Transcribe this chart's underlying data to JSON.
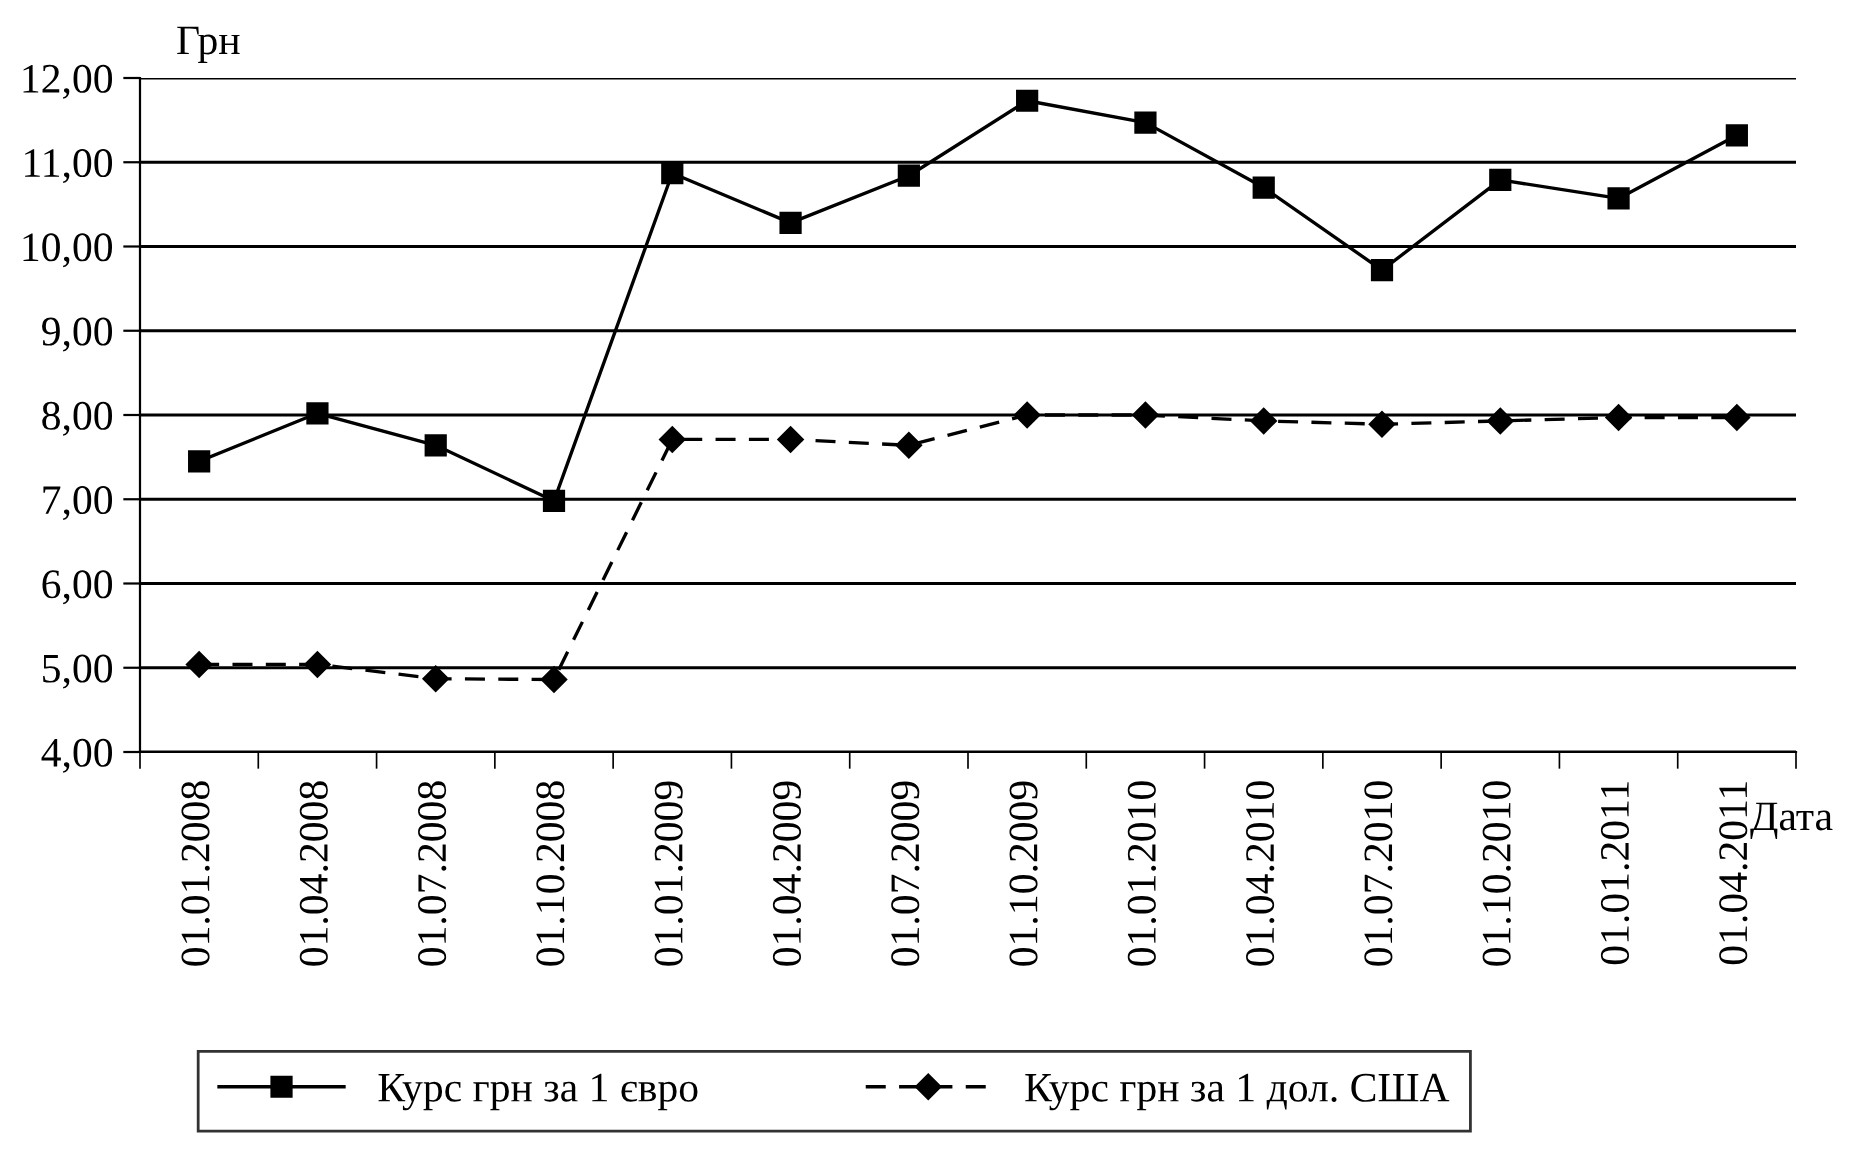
{
  "chart_data": {
    "type": "line",
    "ylabel": "Грн",
    "xlabel": "Дата",
    "categories": [
      "01.01.2008",
      "01.04.2008",
      "01.07.2008",
      "01.10.2008",
      "01.01.2009",
      "01.04.2009",
      "01.07.2009",
      "01.10.2009",
      "01.01.2010",
      "01.04.2010",
      "01.07.2010",
      "01.10.2010",
      "01.01.2011",
      "01.04.2011"
    ],
    "series": [
      {
        "name": "Курс грн за 1 євро",
        "color": "#000000",
        "marker": "square",
        "line_style": "solid",
        "values": [
          7.45,
          8.02,
          7.64,
          6.98,
          10.87,
          10.28,
          10.84,
          11.73,
          11.47,
          10.7,
          9.72,
          10.79,
          10.57,
          11.32
        ]
      },
      {
        "name": "Курс грн за 1 дол. США",
        "color": "#000000",
        "marker": "diamond",
        "line_style": "dashed",
        "values": [
          5.04,
          5.04,
          4.87,
          4.86,
          7.71,
          7.71,
          7.64,
          8.0,
          8.0,
          7.93,
          7.89,
          7.93,
          7.97,
          7.97
        ]
      }
    ],
    "ylim": [
      4,
      12
    ],
    "yticks": [
      {
        "value": 4,
        "label": "4,00"
      },
      {
        "value": 5,
        "label": "5,00"
      },
      {
        "value": 6,
        "label": "6,00"
      },
      {
        "value": 7,
        "label": "7,00"
      },
      {
        "value": 8,
        "label": "8,00"
      },
      {
        "value": 9,
        "label": "9,00"
      },
      {
        "value": 10,
        "label": "10,00"
      },
      {
        "value": 11,
        "label": "11,00"
      },
      {
        "value": 12,
        "label": "12,00"
      }
    ],
    "grid": "y",
    "legend": "bottom"
  }
}
